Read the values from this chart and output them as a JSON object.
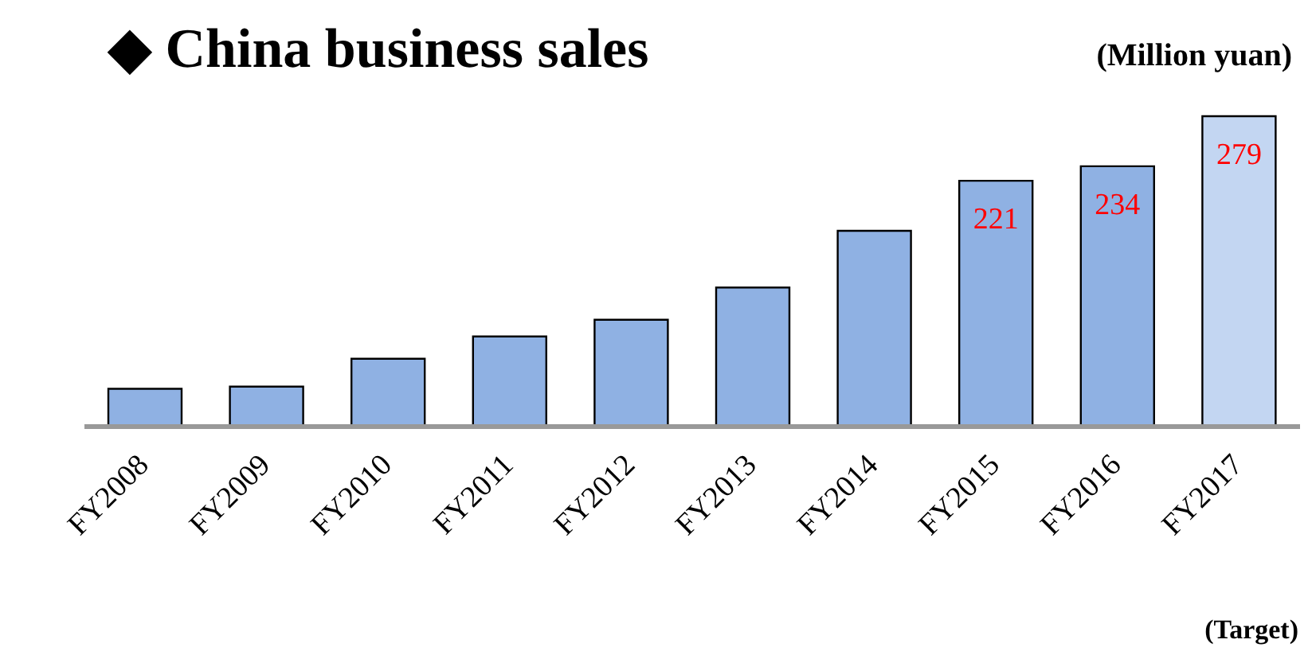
{
  "chart_data": {
    "type": "bar",
    "title": "◆ China business sales",
    "ylabel": "(Million yuan)",
    "categories": [
      "FY2008",
      "FY2009",
      "FY2010",
      "FY2011",
      "FY2012",
      "FY2013",
      "FY2014",
      "FY2015",
      "FY2016",
      "FY2017"
    ],
    "values": [
      34,
      36,
      61,
      81,
      96,
      125,
      176,
      221,
      234,
      279
    ],
    "value_labels": [
      null,
      null,
      null,
      null,
      null,
      null,
      null,
      "221",
      "234",
      "279"
    ],
    "colors": [
      "#8fb1e3",
      "#8fb1e3",
      "#8fb1e3",
      "#8fb1e3",
      "#8fb1e3",
      "#8fb1e3",
      "#8fb1e3",
      "#8fb1e3",
      "#8fb1e3",
      "#c3d6f2"
    ],
    "annotations": [
      "(Target)"
    ],
    "grid": false,
    "legend": false
  }
}
